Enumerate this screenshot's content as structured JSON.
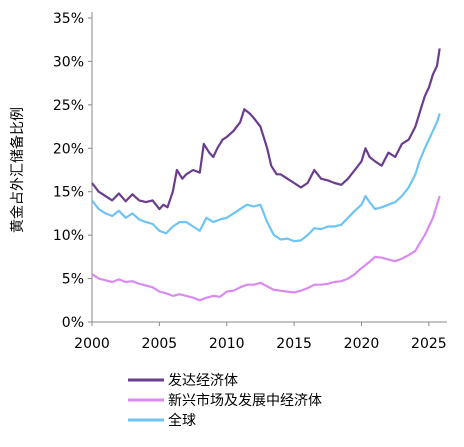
{
  "chart_data": {
    "type": "line",
    "title": "",
    "xlabel": "",
    "ylabel": "黄金占外汇储备比例",
    "xlim": [
      2000,
      2025.9
    ],
    "ylim": [
      0,
      35
    ],
    "x_ticks": [
      2000,
      2005,
      2010,
      2015,
      2020,
      2025
    ],
    "x_tick_labels": [
      "2000",
      "2005",
      "2010",
      "2015",
      "2020",
      "2025"
    ],
    "y_ticks": [
      0,
      5,
      10,
      15,
      20,
      25,
      30,
      35
    ],
    "y_tick_labels": [
      "0%",
      "5%",
      "10%",
      "15%",
      "20%",
      "25%",
      "30%",
      "35%"
    ],
    "grid": false,
    "legend_position": "bottom-left",
    "series": [
      {
        "name": "发达经济体",
        "color": "#6a3d8f",
        "x": [
          2000,
          2000.5,
          2001,
          2001.5,
          2002,
          2002.5,
          2003,
          2003.5,
          2004,
          2004.5,
          2005,
          2005.3,
          2005.6,
          2006,
          2006.3,
          2006.7,
          2007,
          2007.5,
          2008,
          2008.3,
          2008.7,
          2009,
          2009.3,
          2009.7,
          2010,
          2010.5,
          2011,
          2011.3,
          2011.7,
          2012,
          2012.5,
          2013,
          2013.3,
          2013.7,
          2014,
          2014.5,
          2015,
          2015.5,
          2016,
          2016.5,
          2017,
          2017.5,
          2018,
          2018.5,
          2019,
          2019.5,
          2020,
          2020.3,
          2020.6,
          2021,
          2021.5,
          2022,
          2022.5,
          2023,
          2023.5,
          2024,
          2024.3,
          2024.7,
          2025,
          2025.3,
          2025.6,
          2025.8
        ],
        "values": [
          16.0,
          15.0,
          14.5,
          14.0,
          14.8,
          13.9,
          14.7,
          14.0,
          13.8,
          14.0,
          13.0,
          13.5,
          13.2,
          15.0,
          17.5,
          16.5,
          17.0,
          17.5,
          17.2,
          20.5,
          19.5,
          19.0,
          20.0,
          21.0,
          21.3,
          22.0,
          23.0,
          24.5,
          24.0,
          23.5,
          22.5,
          20.0,
          18.0,
          17.0,
          17.0,
          16.5,
          16.0,
          15.5,
          16.0,
          17.5,
          16.5,
          16.3,
          16.0,
          15.8,
          16.5,
          17.5,
          18.5,
          20.0,
          19.0,
          18.5,
          18.0,
          19.5,
          19.0,
          20.5,
          21.0,
          22.5,
          24.0,
          26.0,
          27.0,
          28.5,
          29.5,
          31.5
        ]
      },
      {
        "name": "新兴市场及发展中经济体",
        "color": "#d98bef",
        "x": [
          2000,
          2000.5,
          2001,
          2001.5,
          2002,
          2002.5,
          2003,
          2003.5,
          2004,
          2004.5,
          2005,
          2005.5,
          2006,
          2006.5,
          2007,
          2007.5,
          2008,
          2008.5,
          2009,
          2009.5,
          2010,
          2010.5,
          2011,
          2011.5,
          2012,
          2012.5,
          2013,
          2013.5,
          2014,
          2014.5,
          2015,
          2015.5,
          2016,
          2016.5,
          2017,
          2017.5,
          2018,
          2018.5,
          2019,
          2019.5,
          2020,
          2020.5,
          2021,
          2021.5,
          2022,
          2022.5,
          2023,
          2023.5,
          2024,
          2024.3,
          2024.7,
          2025,
          2025.3,
          2025.6,
          2025.8
        ],
        "values": [
          5.5,
          5.0,
          4.8,
          4.6,
          4.9,
          4.6,
          4.7,
          4.4,
          4.2,
          4.0,
          3.5,
          3.3,
          3.0,
          3.2,
          3.0,
          2.8,
          2.5,
          2.8,
          3.0,
          2.9,
          3.5,
          3.6,
          4.0,
          4.3,
          4.3,
          4.5,
          4.1,
          3.7,
          3.6,
          3.5,
          3.4,
          3.6,
          3.9,
          4.3,
          4.3,
          4.4,
          4.6,
          4.7,
          5.0,
          5.5,
          6.2,
          6.8,
          7.5,
          7.4,
          7.2,
          7.0,
          7.3,
          7.7,
          8.2,
          9.0,
          10.0,
          11.0,
          12.0,
          13.5,
          14.5
        ]
      },
      {
        "name": "全球",
        "color": "#6ec4f5",
        "x": [
          2000,
          2000.5,
          2001,
          2001.5,
          2002,
          2002.5,
          2003,
          2003.5,
          2004,
          2004.5,
          2005,
          2005.5,
          2006,
          2006.5,
          2007,
          2007.5,
          2008,
          2008.5,
          2009,
          2009.5,
          2010,
          2010.5,
          2011,
          2011.5,
          2012,
          2012.5,
          2013,
          2013.5,
          2014,
          2014.5,
          2015,
          2015.5,
          2016,
          2016.5,
          2017,
          2017.5,
          2018,
          2018.5,
          2019,
          2019.5,
          2020,
          2020.3,
          2020.6,
          2021,
          2021.5,
          2022,
          2022.5,
          2023,
          2023.5,
          2024,
          2024.3,
          2024.7,
          2025,
          2025.3,
          2025.6,
          2025.8
        ],
        "values": [
          14.0,
          13.0,
          12.5,
          12.2,
          12.8,
          12.0,
          12.5,
          11.8,
          11.5,
          11.3,
          10.5,
          10.2,
          11.0,
          11.5,
          11.5,
          11.0,
          10.5,
          12.0,
          11.5,
          11.8,
          12.0,
          12.5,
          13.0,
          13.5,
          13.3,
          13.5,
          11.5,
          10.0,
          9.5,
          9.6,
          9.3,
          9.4,
          10.0,
          10.8,
          10.7,
          11.0,
          11.0,
          11.2,
          12.0,
          12.8,
          13.5,
          14.5,
          13.8,
          13.0,
          13.2,
          13.5,
          13.8,
          14.5,
          15.5,
          17.0,
          18.5,
          20.0,
          21.0,
          22.0,
          23.0,
          24.0
        ]
      }
    ]
  }
}
